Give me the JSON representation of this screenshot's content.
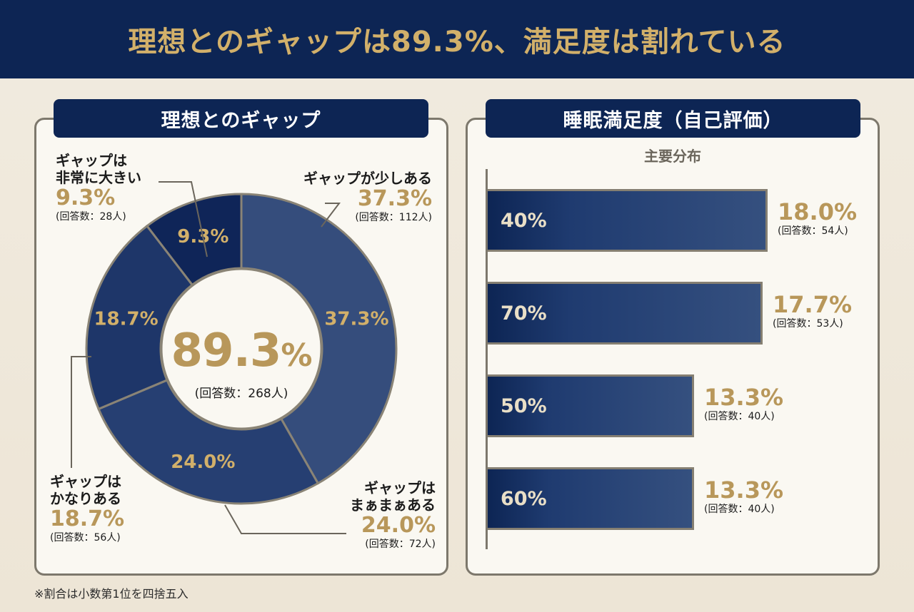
{
  "header": {
    "title": "理想とのギャップは89.3%、満足度は割れている"
  },
  "left_panel": {
    "title": "理想とのギャップ",
    "center": {
      "value": "89.3",
      "unit": "%",
      "count": "(回答数：268人)"
    },
    "callouts": [
      {
        "name_lines": [
          "ギャップが少しある"
        ],
        "pct": "37.3%",
        "count": "(回答数：112人)"
      },
      {
        "name_lines": [
          "ギャップは",
          "まぁまぁある"
        ],
        "pct": "24.0%",
        "count": "(回答数：72人)"
      },
      {
        "name_lines": [
          "ギャップは",
          "かなりある"
        ],
        "pct": "18.7%",
        "count": "(回答数：56人)"
      },
      {
        "name_lines": [
          "ギャップは",
          "非常に大きい"
        ],
        "pct": "9.3%",
        "count": "(回答数：28人)"
      }
    ]
  },
  "right_panel": {
    "title": "睡眠満足度（自己評価）",
    "subtitle": "主要分布"
  },
  "footnote": "※割合は小数第1位を四捨五入",
  "colors": {
    "navy": "#0d2554",
    "gold": "#b8975a",
    "slice_colors": [
      "#354d7c",
      "#263f72",
      "#1e3669",
      "#0f2558"
    ],
    "border": "#7d786c"
  },
  "chart_data": [
    {
      "type": "pie",
      "title": "理想とのギャップ",
      "donut": true,
      "start": "12 o'clock, clockwise",
      "categories": [
        "ギャップが少しある",
        "ギャップはまぁまぁある",
        "ギャップはかなりある",
        "ギャップは非常に大きい"
      ],
      "values": [
        37.3,
        24.0,
        18.7,
        9.3
      ],
      "value_labels": [
        "37.3%",
        "24.0%",
        "18.7%",
        "9.3%"
      ],
      "counts": [
        112,
        72,
        56,
        28
      ],
      "center_total": {
        "value": 89.3,
        "count": 268
      }
    },
    {
      "type": "bar",
      "orientation": "horizontal",
      "title": "睡眠満足度（自己評価）",
      "subtitle": "主要分布",
      "categories": [
        "40%",
        "70%",
        "50%",
        "60%"
      ],
      "values": [
        18.0,
        17.7,
        13.3,
        13.3
      ],
      "value_labels": [
        "18.0%",
        "17.7%",
        "13.3%",
        "13.3%"
      ],
      "counts": [
        "(回答数：54人)",
        "(回答数：53人)",
        "(回答数：40人)",
        "(回答数：40人)"
      ],
      "unit": "%"
    }
  ]
}
